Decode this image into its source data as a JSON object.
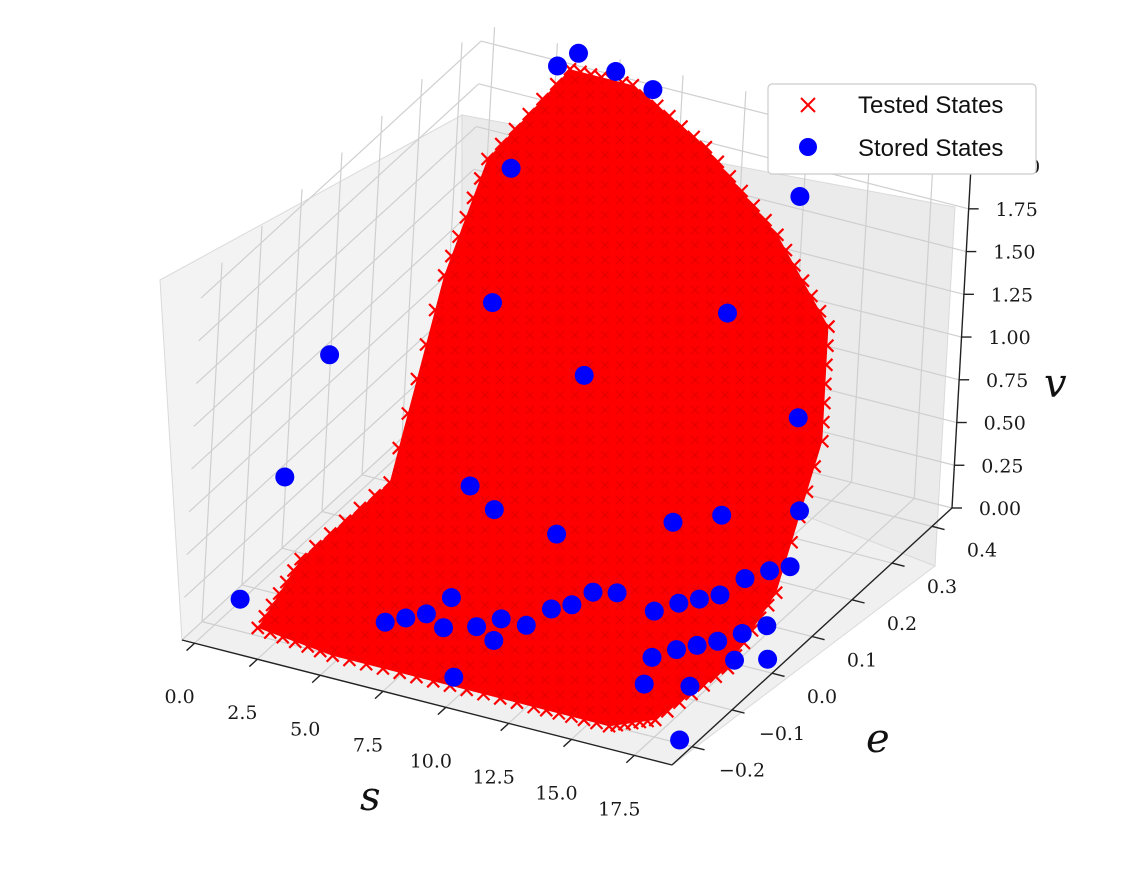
{
  "chart_data": {
    "type": "scatter",
    "projection": "3d",
    "legend": {
      "position": "top-right",
      "entries": [
        {
          "label": "Tested States",
          "marker": "x",
          "color": "#ff0000"
        },
        {
          "label": "Stored States",
          "marker": "o",
          "color": "#0000ff"
        }
      ]
    },
    "axes": {
      "x": {
        "label": "s",
        "range": [
          -0.5,
          19.0
        ],
        "ticks": [
          "0.0",
          "2.5",
          "5.0",
          "7.5",
          "10.0",
          "12.5",
          "15.0",
          "17.5"
        ],
        "tick_values": [
          0,
          2.5,
          5,
          7.5,
          10,
          12.5,
          15,
          17.5
        ]
      },
      "y": {
        "label": "e",
        "range": [
          -0.25,
          0.45
        ],
        "ticks": [
          "−0.2",
          "−0.1",
          "0.0",
          "0.1",
          "0.2",
          "0.3",
          "0.4"
        ],
        "tick_values": [
          -0.2,
          -0.1,
          0,
          0.1,
          0.2,
          0.3,
          0.4
        ]
      },
      "z": {
        "label": "v",
        "range": [
          0.0,
          2.1
        ],
        "ticks": [
          "0.00",
          "0.25",
          "0.50",
          "0.75",
          "1.00",
          "1.25",
          "1.50",
          "1.75",
          "2.00"
        ],
        "tick_values": [
          0,
          0.25,
          0.5,
          0.75,
          1.0,
          1.25,
          1.5,
          1.75,
          2.0
        ]
      },
      "grid": true
    },
    "series": [
      {
        "name": "Tested States",
        "marker": "x",
        "color": "#ff0000",
        "description_note": "",
        "hull": [
          [
            0.9,
            0.18,
            0.05
          ],
          [
            1.0,
            -0.05,
            0.1
          ],
          [
            2.0,
            -0.22,
            0.1
          ],
          [
            5.0,
            -0.22,
            0.05
          ],
          [
            9.0,
            -0.22,
            0.05
          ],
          [
            13.0,
            -0.22,
            0.05
          ],
          [
            16.0,
            -0.22,
            0.05
          ],
          [
            17.5,
            -0.2,
            0.1
          ],
          [
            18.0,
            -0.05,
            0.1
          ],
          [
            17.5,
            0.1,
            0.2
          ],
          [
            16.0,
            0.3,
            0.6
          ],
          [
            14.5,
            0.4,
            1.0
          ],
          [
            12.0,
            0.42,
            1.4
          ],
          [
            9.0,
            0.42,
            1.8
          ],
          [
            6.0,
            0.42,
            2.05
          ],
          [
            3.5,
            0.42,
            2.05
          ],
          [
            1.5,
            0.35,
            1.6
          ],
          [
            0.8,
            0.3,
            1.0
          ]
        ]
      },
      {
        "name": "Stored States",
        "marker": "o",
        "color": "#0000ff",
        "points": [
          [
            0.2,
            -0.15,
            0.05
          ],
          [
            0.2,
            -0.05,
            0.55
          ],
          [
            0.2,
            0.05,
            1.05
          ],
          [
            2.0,
            0.38,
            1.5
          ],
          [
            3.0,
            0.42,
            2.05
          ],
          [
            3.5,
            0.44,
            2.1
          ],
          [
            5.0,
            0.44,
            2.05
          ],
          [
            6.5,
            0.44,
            2.0
          ],
          [
            12.5,
            0.44,
            1.6
          ],
          [
            3.5,
            0.25,
            1.05
          ],
          [
            8.0,
            0.2,
            0.9
          ],
          [
            12.0,
            0.3,
            1.2
          ],
          [
            15.0,
            0.3,
            0.7
          ],
          [
            6.0,
            0.05,
            0.5
          ],
          [
            7.0,
            0.05,
            0.4
          ],
          [
            9.5,
            0.05,
            0.35
          ],
          [
            13.0,
            0.12,
            0.4
          ],
          [
            14.0,
            0.18,
            0.35
          ],
          [
            16.0,
            0.25,
            0.3
          ],
          [
            5.5,
            -0.12,
            0.05
          ],
          [
            6.0,
            -0.1,
            0.05
          ],
          [
            6.5,
            -0.08,
            0.05
          ],
          [
            7.0,
            -0.05,
            0.1
          ],
          [
            7.5,
            -0.1,
            0.05
          ],
          [
            8.5,
            -0.08,
            0.05
          ],
          [
            9.0,
            -0.05,
            0.05
          ],
          [
            9.5,
            -0.1,
            0.05
          ],
          [
            10.0,
            -0.05,
            0.05
          ],
          [
            10.5,
            -0.02,
            0.1
          ],
          [
            11.0,
            0.0,
            0.1
          ],
          [
            11.5,
            0.02,
            0.15
          ],
          [
            12.0,
            0.05,
            0.1
          ],
          [
            9.5,
            -0.2,
            0.05
          ],
          [
            13.5,
            0.05,
            0.05
          ],
          [
            14.0,
            0.08,
            0.05
          ],
          [
            14.5,
            0.1,
            0.05
          ],
          [
            15.0,
            0.12,
            0.05
          ],
          [
            15.5,
            0.15,
            0.1
          ],
          [
            16.0,
            0.18,
            0.1
          ],
          [
            16.5,
            0.2,
            0.1
          ],
          [
            15.0,
            -0.05,
            0.05
          ],
          [
            15.5,
            -0.02,
            0.05
          ],
          [
            16.0,
            0.0,
            0.05
          ],
          [
            16.5,
            0.02,
            0.05
          ],
          [
            17.0,
            0.05,
            0.05
          ],
          [
            17.5,
            0.08,
            0.05
          ],
          [
            15.5,
            -0.1,
            0.02
          ],
          [
            17.0,
            -0.08,
            0.02
          ],
          [
            18.5,
            0.02,
            0.02
          ],
          [
            18.5,
            -0.2,
            0.02
          ],
          [
            17.5,
            0.0,
            0.02
          ]
        ]
      }
    ]
  }
}
